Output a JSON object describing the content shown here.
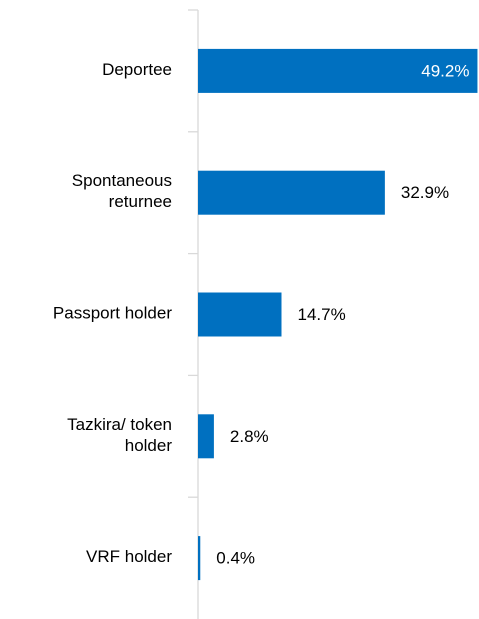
{
  "chart_data": {
    "type": "bar",
    "orientation": "horizontal",
    "categories": [
      "Deportee",
      "Spontaneous\nreturnee",
      "Passport holder",
      "Tazkira/ token\nholder",
      "VRF holder"
    ],
    "values": [
      49.2,
      32.9,
      14.7,
      2.8,
      0.4
    ],
    "value_labels": [
      "49.2%",
      "32.9%",
      "14.7%",
      "2.8%",
      "0.4%"
    ],
    "color": "#0070c0",
    "xlim": [
      0,
      50
    ]
  }
}
